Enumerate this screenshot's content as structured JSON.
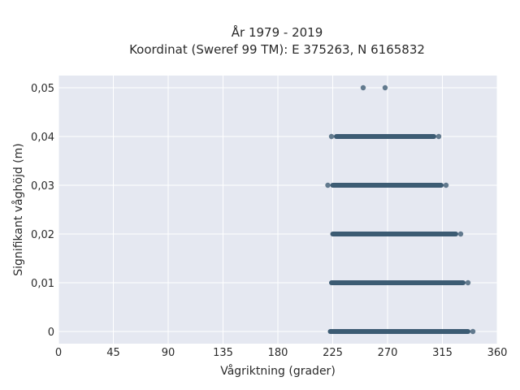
{
  "chart_data": {
    "type": "scatter",
    "title": "År 1979 - 2019",
    "subtitle": "Koordinat (Sweref 99 TM): E 375263, N 6165832",
    "xlabel": "Vågriktning (grader)",
    "ylabel": "Signifikant våghöjd (m)",
    "xlim": [
      0,
      360
    ],
    "ylim": [
      -0.0025,
      0.0525
    ],
    "xticks": [
      0,
      45,
      90,
      135,
      180,
      225,
      270,
      315,
      360
    ],
    "xtick_labels": [
      "0",
      "45",
      "90",
      "135",
      "180",
      "225",
      "270",
      "315",
      "360"
    ],
    "yticks": [
      0,
      0.01,
      0.02,
      0.03,
      0.04,
      0.05
    ],
    "ytick_labels": [
      "0",
      "0,01",
      "0,02",
      "0,03",
      "0,04",
      "0,05"
    ],
    "grid": true,
    "background": "#e5e8f1",
    "point_color": "#33536b",
    "bands": [
      {
        "y": 0.05,
        "x_min": 250,
        "x_max": 268
      },
      {
        "y": 0.04,
        "x_min": 224,
        "x_max": 312
      },
      {
        "y": 0.03,
        "x_min": 221,
        "x_max": 318
      },
      {
        "y": 0.02,
        "x_min": 221,
        "x_max": 330
      },
      {
        "y": 0.01,
        "x_min": 220,
        "x_max": 336
      },
      {
        "y": 0.0,
        "x_min": 219,
        "x_max": 340
      }
    ],
    "points": [
      {
        "x": 250,
        "y": 0.05
      },
      {
        "x": 268,
        "y": 0.05
      },
      {
        "x": 224,
        "y": 0.04
      },
      {
        "x": 312,
        "y": 0.04
      },
      {
        "x": 221,
        "y": 0.03
      },
      {
        "x": 318,
        "y": 0.03
      },
      {
        "x": 330,
        "y": 0.02
      },
      {
        "x": 336,
        "y": 0.01
      },
      {
        "x": 340,
        "y": 0.0
      }
    ]
  }
}
